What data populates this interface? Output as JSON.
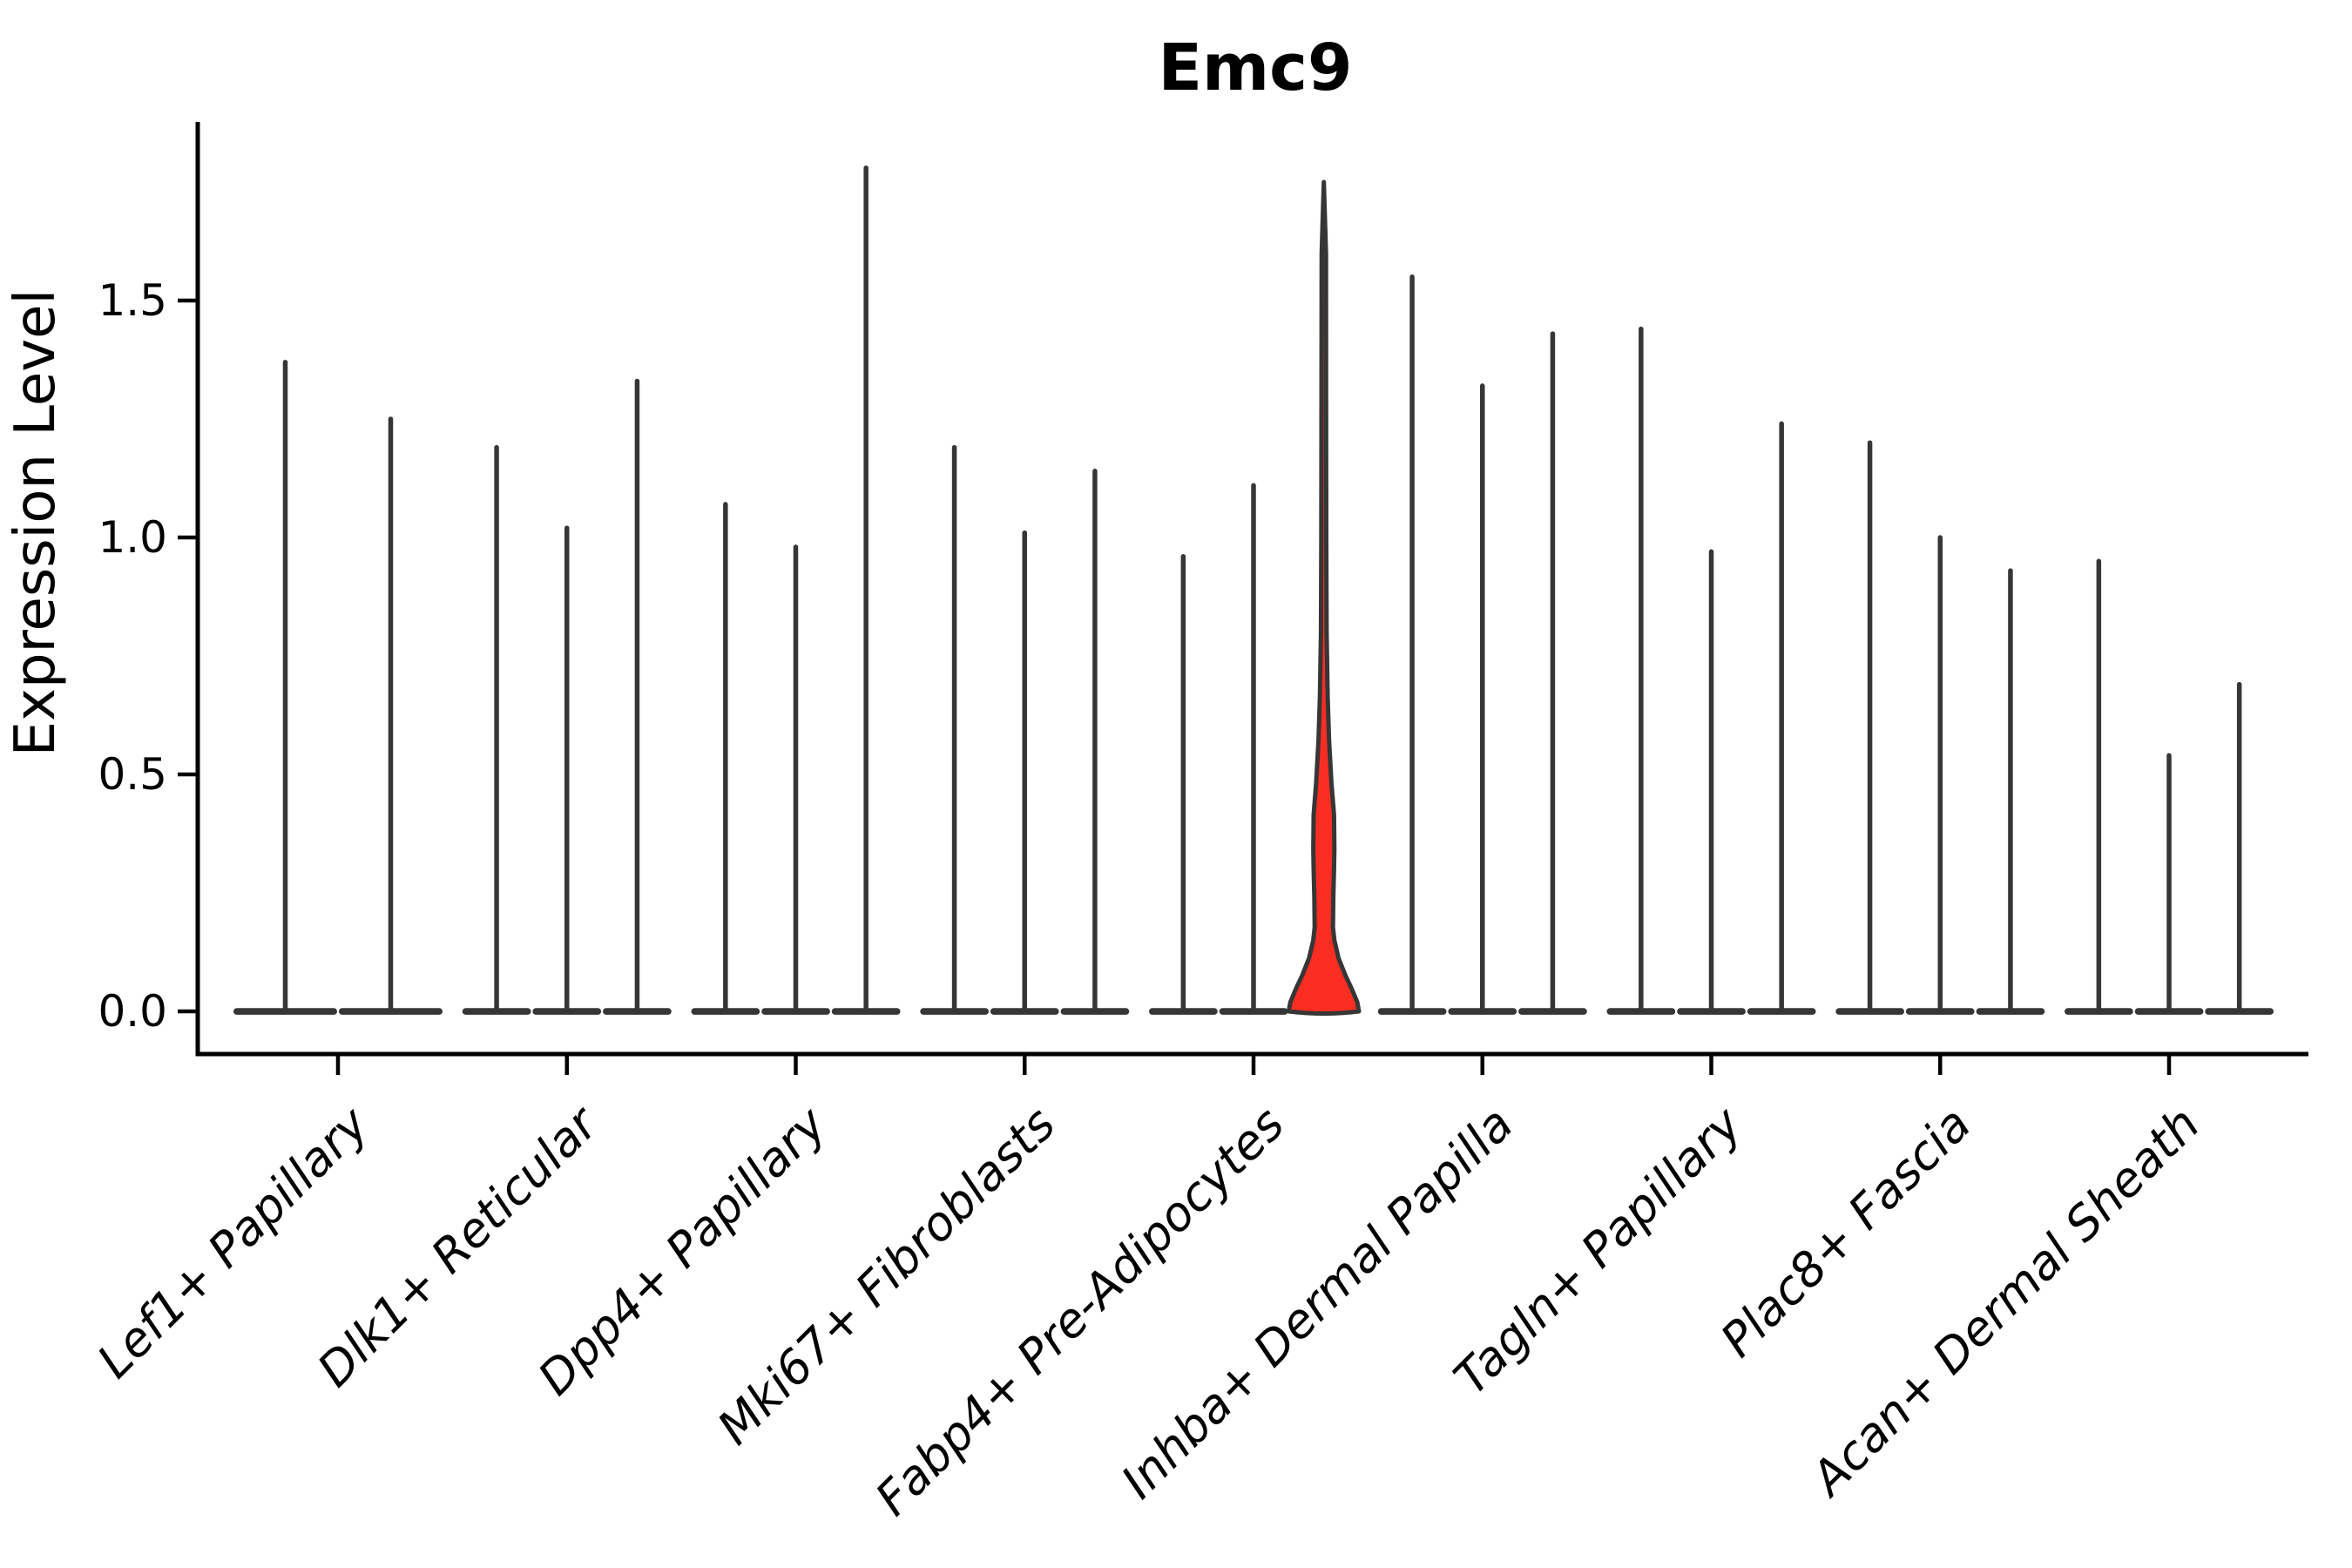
{
  "title": "Emc9",
  "colors": {
    "violin_stroke": "#363636",
    "highlight_fill": "#FA2D23",
    "axis_color": "#000000"
  },
  "chart_data": {
    "type": "violin",
    "title": "Emc9",
    "xlabel": "",
    "ylabel": "Expression Level",
    "ylim": [
      0,
      1.85
    ],
    "yticks": [
      0.0,
      0.5,
      1.0,
      1.5
    ],
    "ytick_labels": [
      "0.0",
      "0.5",
      "1.0",
      "1.5"
    ],
    "grid": false,
    "legend": "none",
    "categories": [
      "Lef1+ Papillary",
      "Dlk1+ Reticular",
      "Dpp4+ Papillary",
      "Mki67+ Fibroblasts",
      "Fabp4+ Pre-Adipocytes",
      "Inhba+ Dermal Papilla",
      "Tagln+ Papillary",
      "Plac8+ Fascia",
      "Acan+ Dermal Sheath"
    ],
    "description": "Violin plot of Emc9 expression. Each category holds 2-3 violins; nearly all distributions are concentrated at 0 with a thin spike up to the listed maximum. One violin (third of Fabp4+ Pre-Adipocytes) is highlighted red with visible density mass.",
    "groups": [
      {
        "category": "Lef1+ Papillary",
        "violins": [
          {
            "max": 1.37,
            "highlight": false
          },
          {
            "max": 1.25,
            "highlight": false
          }
        ]
      },
      {
        "category": "Dlk1+ Reticular",
        "violins": [
          {
            "max": 1.19,
            "highlight": false
          },
          {
            "max": 1.02,
            "highlight": false
          },
          {
            "max": 1.33,
            "highlight": false
          }
        ]
      },
      {
        "category": "Dpp4+ Papillary",
        "violins": [
          {
            "max": 1.07,
            "highlight": false
          },
          {
            "max": 0.98,
            "highlight": false
          },
          {
            "max": 1.78,
            "highlight": false
          }
        ]
      },
      {
        "category": "Mki67+ Fibroblasts",
        "violins": [
          {
            "max": 1.19,
            "highlight": false
          },
          {
            "max": 1.01,
            "highlight": false
          },
          {
            "max": 1.14,
            "highlight": false
          }
        ]
      },
      {
        "category": "Fabp4+ Pre-Adipocytes",
        "violins": [
          {
            "max": 0.96,
            "highlight": false
          },
          {
            "max": 1.11,
            "highlight": false
          },
          {
            "max": 1.75,
            "highlight": true
          }
        ]
      },
      {
        "category": "Inhba+ Dermal Papilla",
        "violins": [
          {
            "max": 1.55,
            "highlight": false
          },
          {
            "max": 1.32,
            "highlight": false
          },
          {
            "max": 1.43,
            "highlight": false
          }
        ]
      },
      {
        "category": "Tagln+ Papillary",
        "violins": [
          {
            "max": 1.44,
            "highlight": false
          },
          {
            "max": 0.97,
            "highlight": false
          },
          {
            "max": 1.24,
            "highlight": false
          }
        ]
      },
      {
        "category": "Plac8+ Fascia",
        "violins": [
          {
            "max": 1.2,
            "highlight": false
          },
          {
            "max": 1.0,
            "highlight": false
          },
          {
            "max": 0.93,
            "highlight": false
          }
        ]
      },
      {
        "category": "Acan+ Dermal Sheath",
        "violins": [
          {
            "max": 0.95,
            "highlight": false
          },
          {
            "max": 0.54,
            "highlight": false
          },
          {
            "max": 0.69,
            "highlight": false
          }
        ]
      }
    ],
    "highlight_profile": [
      [
        0.0,
        1.0
      ],
      [
        0.02,
        0.95
      ],
      [
        0.05,
        0.78
      ],
      [
        0.075,
        0.62
      ],
      [
        0.112,
        0.42
      ],
      [
        0.15,
        0.3
      ],
      [
        0.177,
        0.26
      ],
      [
        0.241,
        0.27
      ],
      [
        0.3,
        0.29
      ],
      [
        0.342,
        0.3
      ],
      [
        0.415,
        0.29
      ],
      [
        0.48,
        0.22
      ],
      [
        0.572,
        0.15
      ],
      [
        0.664,
        0.11
      ],
      [
        0.8,
        0.08
      ],
      [
        1.0,
        0.07
      ],
      [
        1.3,
        0.066
      ],
      [
        1.6,
        0.062
      ]
    ]
  }
}
